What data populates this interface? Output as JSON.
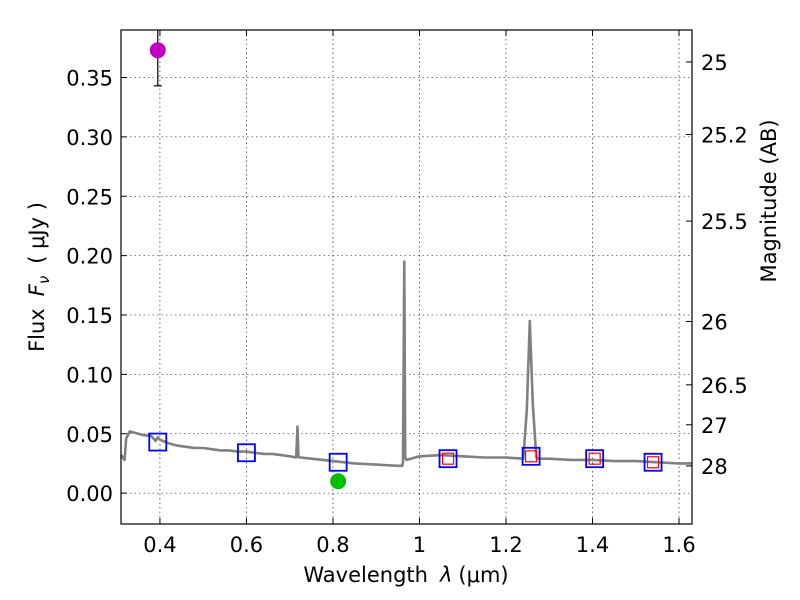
{
  "chart_data": {
    "type": "scatter",
    "x_axis": {
      "label_text": "Wavelength",
      "label_symbol": "λ",
      "label_unit": "(μm)",
      "range": [
        0.31,
        1.63
      ],
      "ticks": [
        0.4,
        0.6,
        0.8,
        1.0,
        1.2,
        1.4,
        1.6
      ],
      "tick_labels": [
        "0.4",
        "0.6",
        "0.8",
        "1",
        "1.2",
        "1.4",
        "1.6"
      ]
    },
    "y_axis": {
      "label_text": "Flux",
      "label_symbol": "F",
      "label_subscript": "ν",
      "label_unit": "( μJy )",
      "range": [
        -0.026,
        0.39
      ],
      "ticks": [
        0.0,
        0.05,
        0.1,
        0.15,
        0.2,
        0.25,
        0.3,
        0.35
      ],
      "tick_labels": [
        "0.00",
        "0.05",
        "0.10",
        "0.15",
        "0.20",
        "0.25",
        "0.30",
        "0.35"
      ]
    },
    "y2_axis": {
      "label": "Magnitude (AB)",
      "ticks": [
        25,
        25.2,
        25.5,
        26,
        26.5,
        27,
        28
      ],
      "tick_labels": [
        "25",
        "25.2",
        "25.5",
        "26",
        "26.5",
        "27",
        "28"
      ]
    },
    "grid": true,
    "series": [
      {
        "name": "model spectrum",
        "kind": "line",
        "color": "#808080",
        "x": [
          0.31,
          0.318,
          0.322,
          0.33,
          0.34,
          0.36,
          0.38,
          0.39,
          0.395,
          0.4,
          0.42,
          0.44,
          0.46,
          0.48,
          0.5,
          0.52,
          0.54,
          0.56,
          0.58,
          0.6,
          0.62,
          0.64,
          0.66,
          0.68,
          0.7,
          0.715,
          0.718,
          0.72,
          0.722,
          0.725,
          0.75,
          0.8,
          0.85,
          0.9,
          0.95,
          0.96,
          0.962,
          0.965,
          0.967,
          0.97,
          0.98,
          1.0,
          1.05,
          1.1,
          1.15,
          1.2,
          1.24,
          1.248,
          1.255,
          1.262,
          1.27,
          1.275,
          1.3,
          1.35,
          1.4,
          1.45,
          1.5,
          1.55,
          1.6,
          1.63
        ],
        "y": [
          0.032,
          0.028,
          0.046,
          0.052,
          0.051,
          0.049,
          0.048,
          0.044,
          0.047,
          0.045,
          0.042,
          0.04,
          0.039,
          0.038,
          0.038,
          0.037,
          0.036,
          0.036,
          0.035,
          0.035,
          0.034,
          0.033,
          0.033,
          0.032,
          0.031,
          0.03,
          0.056,
          0.031,
          0.03,
          0.03,
          0.029,
          0.027,
          0.025,
          0.024,
          0.023,
          0.023,
          0.026,
          0.195,
          0.03,
          0.028,
          0.029,
          0.031,
          0.032,
          0.031,
          0.03,
          0.03,
          0.029,
          0.07,
          0.145,
          0.075,
          0.03,
          0.029,
          0.029,
          0.028,
          0.028,
          0.027,
          0.027,
          0.026,
          0.025,
          0.025
        ]
      },
      {
        "name": "model photometry",
        "kind": "open-square",
        "color": "#0000ff",
        "x": [
          0.395,
          0.6,
          0.812,
          1.066,
          1.258,
          1.405,
          1.54
        ],
        "y": [
          0.043,
          0.034,
          0.026,
          0.029,
          0.031,
          0.029,
          0.026
        ]
      },
      {
        "name": "small open squares",
        "kind": "open-square-small",
        "color": "#ff0000",
        "x": [
          1.066,
          1.258,
          1.405,
          1.54
        ],
        "y": [
          0.029,
          0.031,
          0.029,
          0.026
        ]
      },
      {
        "name": "observed photometry",
        "kind": "point-errorbar",
        "points": [
          {
            "x": 0.395,
            "y": 0.373,
            "yerr_low": 0.03,
            "yerr_high": 0.018,
            "color": "#bf00bf"
          },
          {
            "x": 0.812,
            "y": 0.01,
            "yerr_low": 0.004,
            "yerr_high": 0.004,
            "color": "#00bf00"
          }
        ]
      }
    ]
  }
}
